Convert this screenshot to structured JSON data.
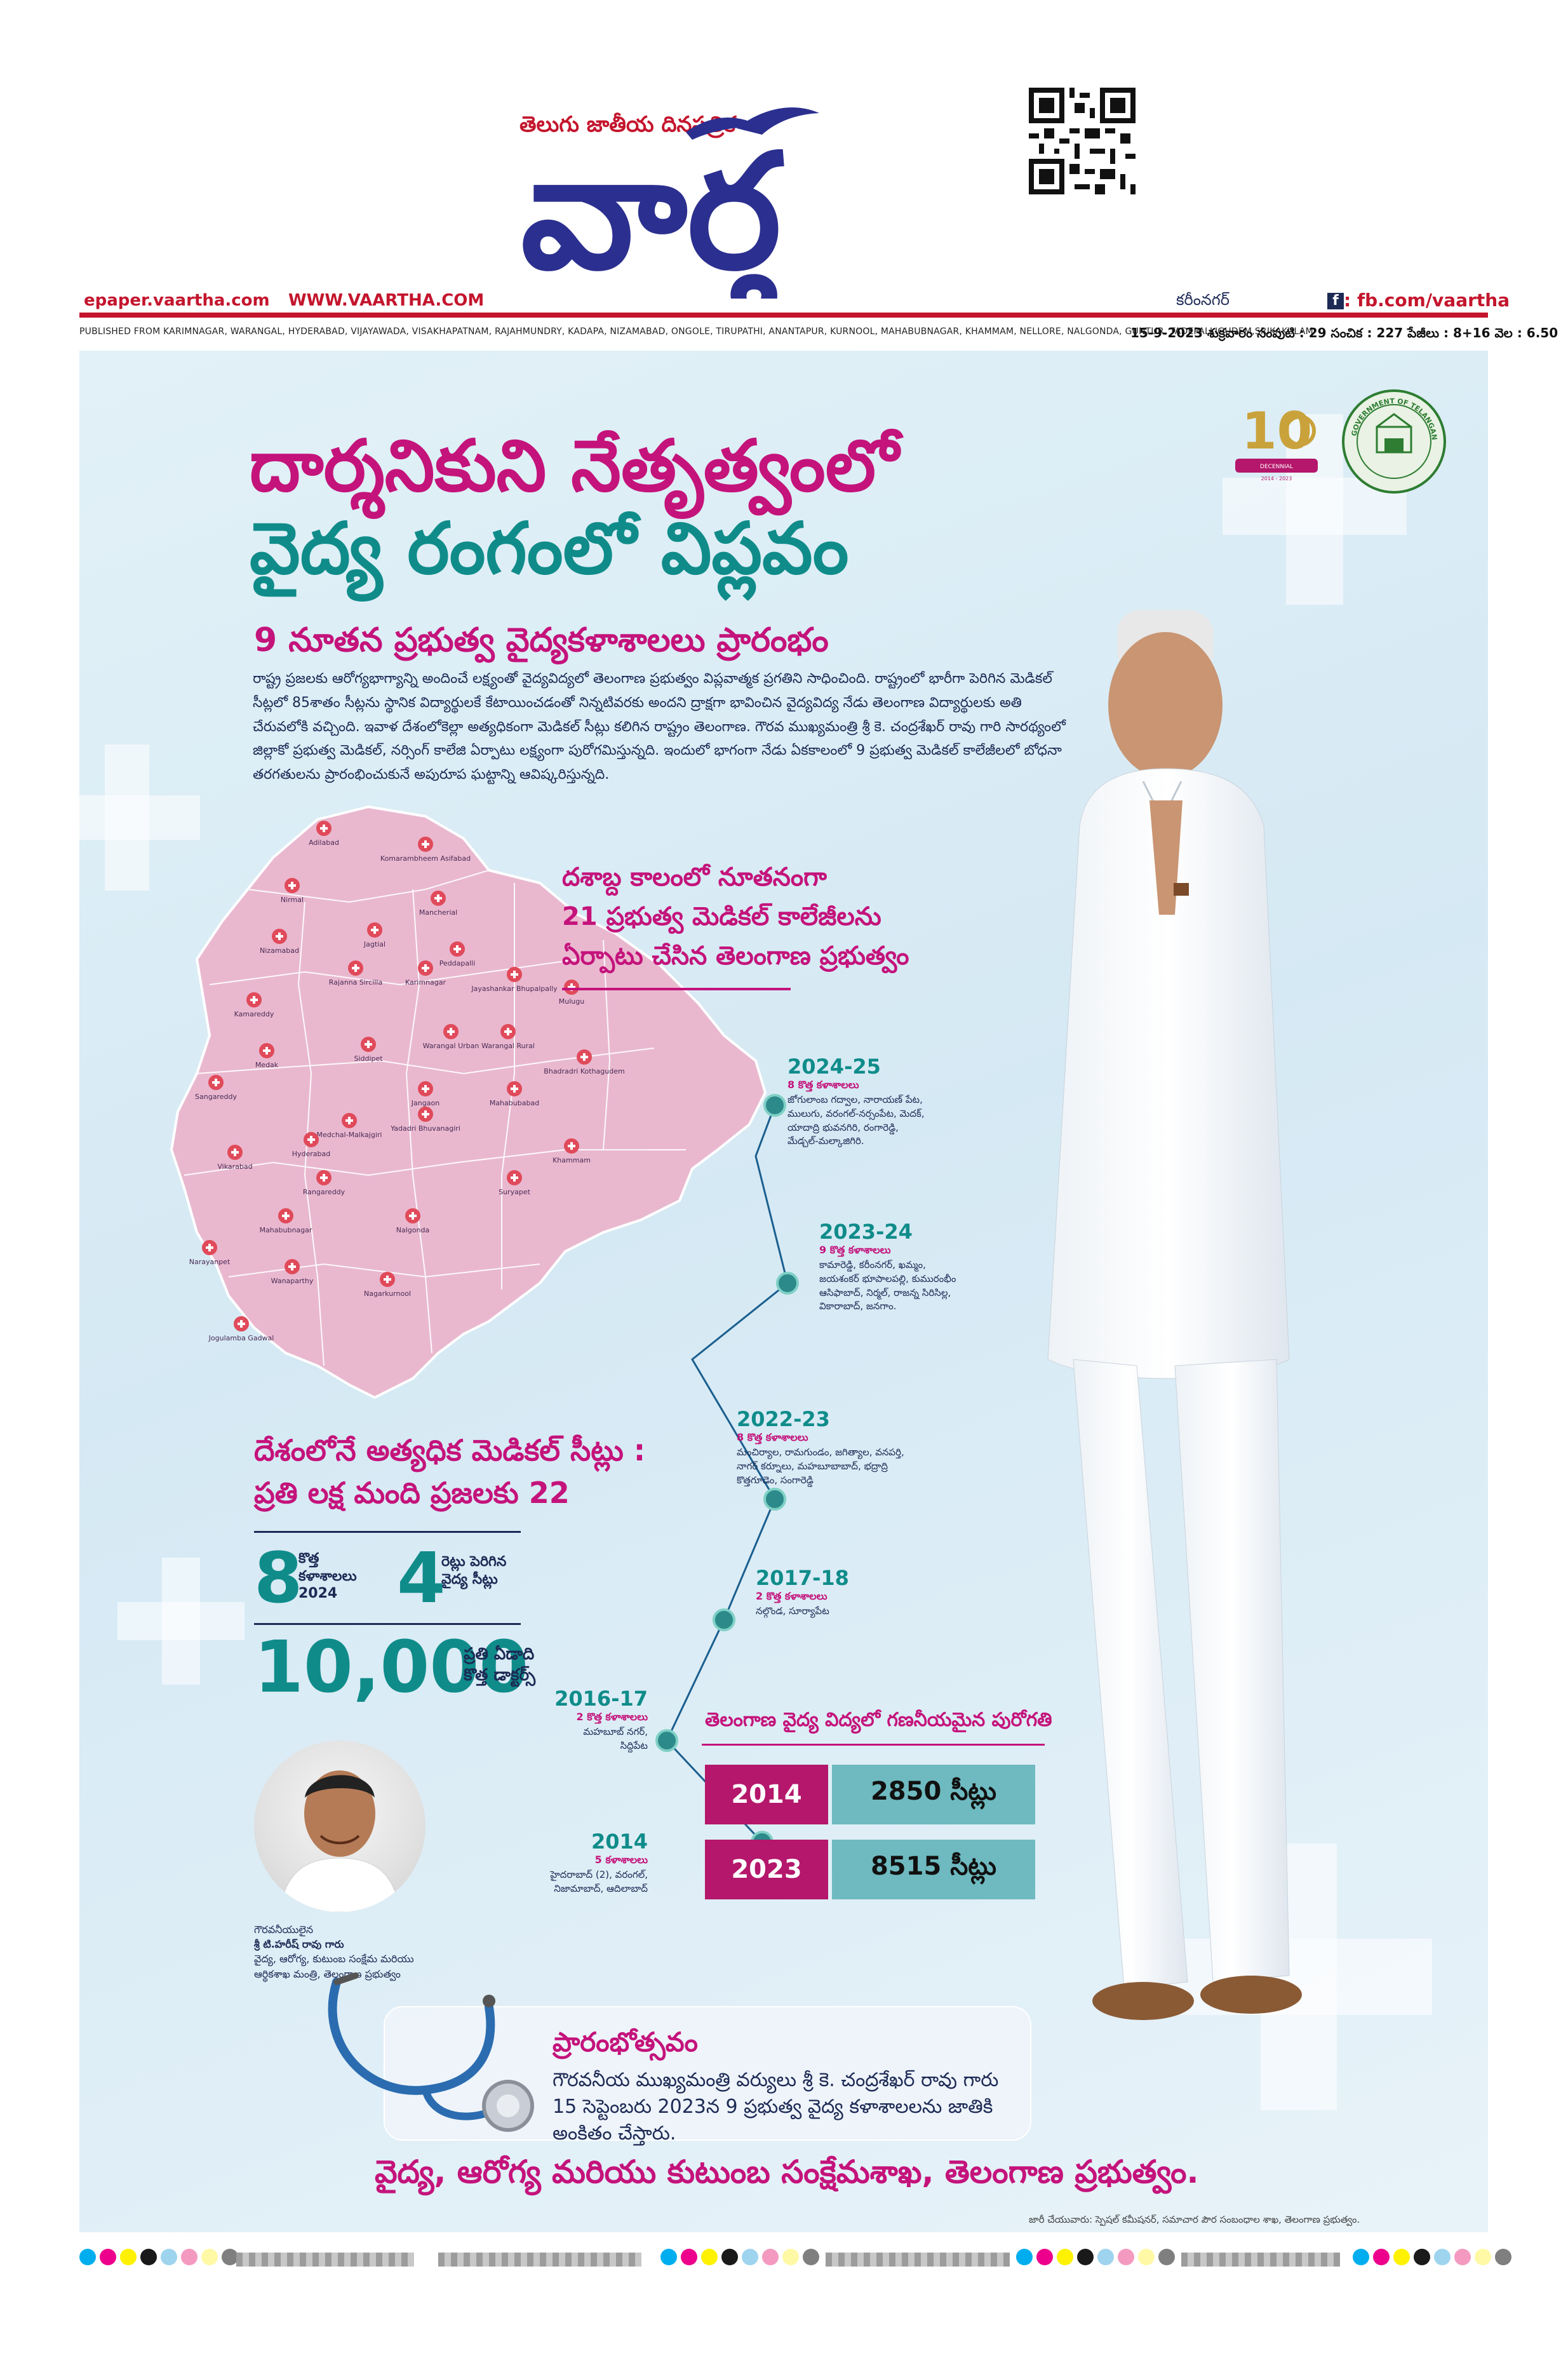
{
  "masthead": {
    "tagline": "తెలుగు జాతీయ దినపత్రిక",
    "logo_text": "వార్త",
    "epaper": "epaper.vaartha.com",
    "website": "WWW.VAARTHA.COM",
    "edition_city": "కరీంనగర్",
    "facebook": ": fb.com/vaartha",
    "published_from": "PUBLISHED FROM KARIMNAGAR, WARANGAL, HYDERABAD, VIJAYAWADA, VISAKHAPATNAM, RAJAHMUNDRY, KADAPA, NIZAMABAD, ONGOLE, TIRUPATHI, ANANTAPUR, KURNOOL, MAHABUBNAGAR, KHAMMAM, NELLORE, NALGONDA, GUNTUR, TADEPALLIGUDEM,SRIKAKULAM",
    "dateline": "15-9-2023 శుక్రవారం సంపుటి : 29 సంచిక : 227 పేజీలు : 8+16 వెల : 6.50"
  },
  "headline": {
    "line1": "దార్శనికుని నేతృత్వంలో",
    "line2": "వైద్య రంగంలో విప్లవం",
    "subhead": "9 నూతన ప్రభుత్వ వైద్యకళాశాలలు ప్రారంభం",
    "intro": "రాష్ట్ర ప్రజలకు ఆరోగ్యభాగ్యాన్ని అందించే లక్ష్యంతో వైద్యవిద్యలో తెలంగాణ ప్రభుత్వం విప్లవాత్మక ప్రగతిని సాధించింది. రాష్ట్రంలో భారీగా పెరిగిన మెడికల్ సీట్లలో 85శాతం సీట్లను స్థానిక విద్యార్థులకే కేటాయించడంతో నిన్నటివరకు అందని ద్రాక్షగా భావించిన వైద్యవిద్య నేడు తెలంగాణ విద్యార్థులకు అతి చేరువలోకి వచ్చింది. ఇవాళ దేశంలోకెల్లా అత్యధికంగా మెడికల్ సీట్లు కలిగిన రాష్ట్రం తెలంగాణ. గౌరవ ముఖ్యమంత్రి శ్రీ కె. చంద్రశేఖర్ రావు గారి సారథ్యంలో జిల్లాకో ప్రభుత్వ మెడికల్, నర్సింగ్ కాలేజి ఏర్పాటు లక్ష్యంగా పురోగమిస్తున్నది. ఇందులో భాగంగా నేడు ఏకకాలంలో 9 ప్రభుత్వ మెడికల్ కాలేజీలలో బోధనా తరగతులను ప్రారంభించుకునే అపురూప ఘట్టాన్ని ఆవిష్కరిస్తున్నది."
  },
  "emblems": {
    "decennial": "TELANGANA FORMATION DECENNIAL CELEBRATIONS 2014 - 2023",
    "decennial_number": "10",
    "govt": "GOVERNMENT OF TELANGANA"
  },
  "map": {
    "districts": [
      "Adilabad",
      "Komarambheem Asifabad",
      "Nirmal",
      "Mancherial",
      "Nizamabad",
      "Jagtial",
      "Peddapalli",
      "Jayashankar Bhupalpally",
      "Rajanna Sircilla",
      "Karimnagar",
      "Kamareddy",
      "Mulugu",
      "Medak",
      "Siddipet",
      "Warangal Urban",
      "Warangal Rural",
      "Bhadradri Kothagudem",
      "Sangareddy",
      "Jangaon",
      "Mahabubabad",
      "Medchal-Malkajgiri",
      "Yadadri Bhuvanagiri",
      "Vikarabad",
      "Hyderabad",
      "Khammam",
      "Rangareddy",
      "Suryapet",
      "Mahabubnagar",
      "Nalgonda",
      "Narayanpet",
      "Wanaparthy",
      "Nagarkurnool",
      "Jogulamba Gadwal"
    ],
    "callout_line1": "దశాబ్ద కాలంలో నూతనంగా",
    "callout_line2": "21 ప్రభుత్వ మెడికల్ కాలేజీలను",
    "callout_line3": "ఏర్పాటు చేసిన తెలంగాణ ప్రభుత్వం"
  },
  "timeline": [
    {
      "year": "2024-25",
      "sub": "8 కొత్త కళాశాలలు",
      "text": [
        "జోగులాంబ గద్వాల, నారాయణ్ పేట,",
        "ములుగు, వరంగల్-నర్సంపేట, మెదక్,",
        "యాదాద్రి భువనగిరి, రంగారెడ్డి,",
        "మేడ్చల్-మల్కాజిగిరి."
      ]
    },
    {
      "year": "2023-24",
      "sub": "9 కొత్త కళాశాలలు",
      "text": [
        "కామారెడ్డి, కరీంనగర్, ఖమ్మం,",
        "జయశంకర్ భూపాలపల్లి, కుమురంభీం",
        "ఆసిఫాబాద్, నిర్మల్, రాజన్న సిరిసిల్ల,",
        "వికారాబాద్, జనగాం."
      ]
    },
    {
      "year": "2022-23",
      "sub": "8 కొత్త కళాశాలలు",
      "text": [
        "మంచిర్యాల, రామగుండం, జగిత్యాల, వనపర్తి,",
        "నాగర్ కర్నూలు, మహబూబాబాద్, భద్రాద్రి",
        "కొత్తగూడెం, సంగారెడ్డి"
      ]
    },
    {
      "year": "2017-18",
      "sub": "2 కొత్త కళాశాలలు",
      "text": [
        "నల్గొండ, సూర్యాపేట"
      ]
    },
    {
      "year": "2016-17",
      "sub": "2 కొత్త కళాశాలలు",
      "text": [
        "మహబూబ్ నగర్,",
        "సిద్దిపేట"
      ]
    },
    {
      "year": "2014",
      "sub": "5 కళాశాలలు",
      "text": [
        "హైదరాబాద్ (2), వరంగల్,",
        "నిజామాబాద్, ఆదిలాబాద్"
      ]
    }
  ],
  "stats": {
    "heading_line1": "దేశంలోనే అత్యధిక మెడికల్ సీట్లు :",
    "heading_line2": "ప్రతి లక్ష మంది ప్రజలకు 22",
    "new_colleges_num": "8",
    "new_colleges_label1": "కొత్త",
    "new_colleges_label2": "కళాశాలలు",
    "new_colleges_label3": "2024",
    "seat_growth_num": "4",
    "seat_growth_label1": "రెట్లు పెరిగిన",
    "seat_growth_label2": "వైద్య సీట్లు",
    "doctors_num": "10,000",
    "doctors_label1": "ప్రతి ఏడాది",
    "doctors_label2": "కొత్త డాక్టర్స్"
  },
  "progress_table": {
    "title": "తెలంగాణ వైద్య విద్యలో గణనీయమైన పురోగతి",
    "rows": [
      {
        "year": "2014",
        "seats": "2850 సీట్లు"
      },
      {
        "year": "2023",
        "seats": "8515 సీట్లు"
      }
    ]
  },
  "minister": {
    "caption1": "గౌరవనీయులైన",
    "caption2": "శ్రీ టి.హరీష్ రావు గారు",
    "caption3": "వైద్య, ఆరోగ్య, కుటుంబ సంక్షేమ మరియు",
    "caption4": "ఆర్థికశాఖ మంత్రి, తెలంగాణ ప్రభుత్వం"
  },
  "inauguration": {
    "title": "ప్రారంభోత్సవం",
    "text": "గౌరవనీయ ముఖ్యమంత్రి వర్యులు శ్రీ కె. చంద్రశేఖర్ రావు గారు 15 సెప్టెంబరు 2023న 9 ప్రభుత్వ వైద్య కళాశాలలను జాతికి అంకితం చేస్తారు."
  },
  "footer": {
    "department": "వైద్య, ఆరోగ్య మరియు కుటుంబ సంక్షేమశాఖ, తెలంగాణ ప్రభుత్వం.",
    "credit": "జారీ చేయువారు: స్పెషల్ కమీషనర్, సమాచార పౌర సంబంధాల శాఖ, తెలంగాణ ప్రభుత్వం."
  },
  "colors": {
    "brand_red": "#c4152d",
    "magenta": "#c4137b",
    "teal": "#0f8c8a",
    "navy": "#1d2a55",
    "table_year": "#b4176b",
    "table_value": "#6ebac0"
  }
}
